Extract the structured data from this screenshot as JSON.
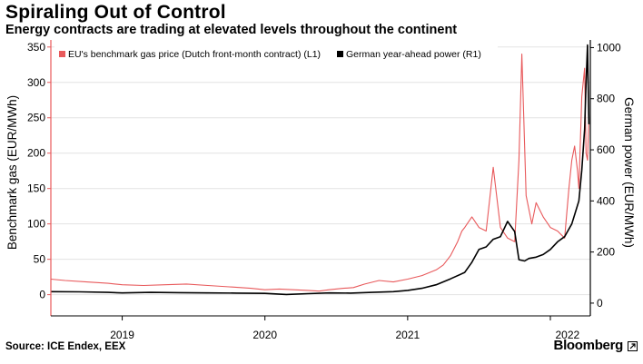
{
  "header": {
    "title": "Spiraling Out of Control",
    "subtitle": "Energy contracts are trading at elevated levels throughout the continent"
  },
  "footer": {
    "source": "Source: ICE Endex, EEX",
    "brand": "Bloomberg"
  },
  "colors": {
    "gas": "#e8595b",
    "power": "#000000",
    "grid": "#e3e3e3",
    "axis": "#000000"
  },
  "chart_data": {
    "type": "line",
    "title": "Spiraling Out of Control",
    "subtitle": "Energy contracts are trading at elevated levels throughout the continent",
    "x_ticks": [
      "2019",
      "2020",
      "2021",
      "2022"
    ],
    "x_range": [
      2018.5,
      2022.28
    ],
    "left_axis": {
      "label": "Benchmark gas (EUR/MWh)",
      "ticks": [
        0,
        50,
        100,
        150,
        200,
        250,
        300,
        350
      ],
      "tick_labels": [
        "0",
        "50",
        "100",
        "150",
        "200",
        "250",
        "300",
        "350"
      ],
      "ylim": [
        -30,
        360
      ]
    },
    "right_axis": {
      "label": "German power (EUR/MWh)",
      "ticks": [
        0,
        200,
        400,
        600,
        800,
        1000
      ],
      "tick_labels": [
        "0",
        "200",
        "400",
        "600",
        "800",
        "1000"
      ],
      "ylim": [
        -50,
        1030
      ]
    },
    "legend": {
      "position": "top-left",
      "entries": [
        "EU's benchmark gas price (Dutch front-month contract) (L1)",
        "German year-ahead power (R1)"
      ]
    },
    "series": [
      {
        "name": "EU's benchmark gas price (Dutch front-month contract) (L1)",
        "axis": "left",
        "x": [
          2018.5,
          2018.6,
          2018.75,
          2018.9,
          2019.0,
          2019.15,
          2019.3,
          2019.45,
          2019.6,
          2019.75,
          2019.9,
          2020.0,
          2020.1,
          2020.2,
          2020.3,
          2020.38,
          2020.45,
          2020.55,
          2020.62,
          2020.7,
          2020.8,
          2020.9,
          2021.0,
          2021.1,
          2021.2,
          2021.25,
          2021.3,
          2021.35,
          2021.38,
          2021.4,
          2021.45,
          2021.5,
          2021.55,
          2021.6,
          2021.65,
          2021.7,
          2021.75,
          2021.78,
          2021.8,
          2021.83,
          2021.87,
          2021.9,
          2021.95,
          2022.0,
          2022.05,
          2022.1,
          2022.13,
          2022.15,
          2022.17,
          2022.19,
          2022.2,
          2022.22,
          2022.24,
          2022.25,
          2022.26,
          2022.27
        ],
        "values": [
          22,
          20,
          18,
          16,
          14,
          13,
          14,
          15,
          13,
          11,
          9,
          7,
          8,
          7,
          6,
          5,
          7,
          9,
          10,
          15,
          20,
          18,
          22,
          27,
          35,
          42,
          55,
          75,
          90,
          95,
          110,
          95,
          90,
          180,
          95,
          80,
          75,
          190,
          340,
          140,
          100,
          130,
          110,
          95,
          90,
          80,
          150,
          190,
          210,
          175,
          150,
          280,
          320,
          200,
          190,
          250
        ]
      },
      {
        "name": "German year-ahead power (R1)",
        "axis": "right",
        "x": [
          2018.5,
          2018.7,
          2018.9,
          2019.0,
          2019.2,
          2019.4,
          2019.6,
          2019.8,
          2020.0,
          2020.15,
          2020.3,
          2020.45,
          2020.6,
          2020.75,
          2020.9,
          2021.0,
          2021.1,
          2021.2,
          2021.3,
          2021.4,
          2021.45,
          2021.5,
          2021.55,
          2021.6,
          2021.65,
          2021.7,
          2021.75,
          2021.78,
          2021.82,
          2021.85,
          2021.9,
          2021.95,
          2022.0,
          2022.05,
          2022.1,
          2022.15,
          2022.2,
          2022.22,
          2022.24,
          2022.25,
          2022.26,
          2022.27
        ],
        "values": [
          45,
          44,
          42,
          40,
          42,
          41,
          40,
          39,
          38,
          34,
          37,
          40,
          39,
          42,
          45,
          50,
          58,
          72,
          95,
          120,
          160,
          210,
          220,
          250,
          260,
          320,
          280,
          170,
          165,
          175,
          180,
          190,
          210,
          240,
          260,
          310,
          400,
          520,
          680,
          860,
          1010,
          700
        ]
      }
    ]
  }
}
